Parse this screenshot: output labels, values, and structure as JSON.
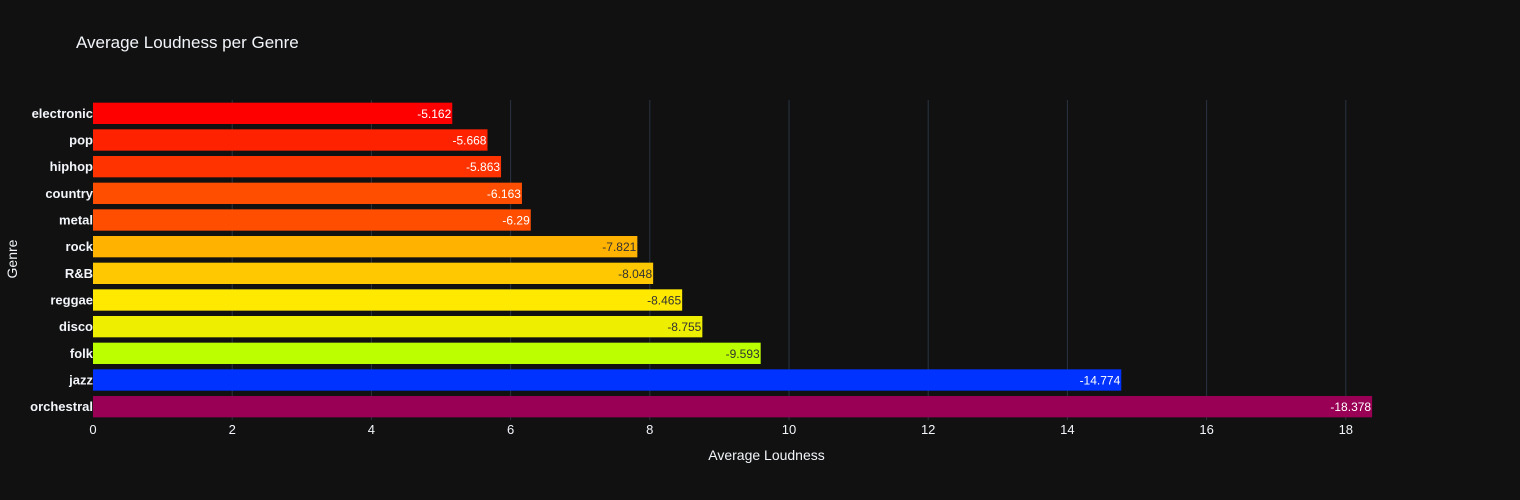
{
  "chart_data": {
    "type": "bar",
    "orientation": "horizontal",
    "title": "Average Loudness per Genre",
    "xlabel": "Average Loudness",
    "ylabel": "Genre",
    "xlim": [
      0,
      18.378
    ],
    "x_ticks": [
      0,
      2,
      4,
      6,
      8,
      10,
      12,
      14,
      16,
      18
    ],
    "grid": "vertical",
    "legend": "none",
    "categories": [
      "electronic",
      "pop",
      "hiphop",
      "country",
      "metal",
      "rock",
      "R&B",
      "reggae",
      "disco",
      "folk",
      "jazz",
      "orchestral"
    ],
    "values": [
      5.162,
      5.668,
      5.863,
      6.163,
      6.29,
      7.821,
      8.048,
      8.465,
      8.755,
      9.593,
      14.774,
      18.378
    ],
    "labels": [
      "-5.162",
      "-5.668",
      "-5.863",
      "-6.163",
      "-6.29",
      "-7.821",
      "-8.048",
      "-8.465",
      "-8.755",
      "-9.593",
      "-14.774",
      "-18.378"
    ],
    "bar_colors": [
      "#ff0000",
      "#ff2200",
      "#ff3300",
      "#ff4e00",
      "#ff4e00",
      "#ffb200",
      "#ffc800",
      "#ffe900",
      "#eeee00",
      "#bbff00",
      "#0033ff",
      "#990055"
    ],
    "label_colors": [
      "#ffffff",
      "#ffffff",
      "#ffffff",
      "#ffffff",
      "#ffffff",
      "#333333",
      "#333333",
      "#333333",
      "#333333",
      "#333333",
      "#ffffff",
      "#ffffff"
    ]
  }
}
